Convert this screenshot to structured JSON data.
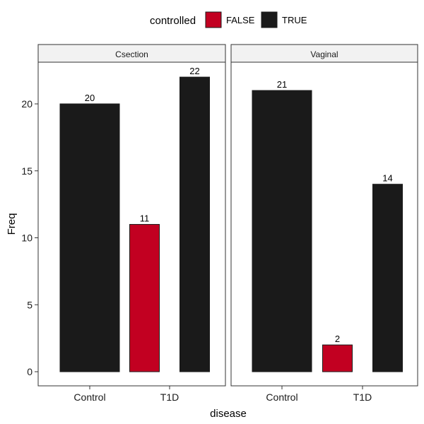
{
  "chart_data": {
    "type": "bar",
    "layout": "faceted-dodged",
    "xlabel": "disease",
    "ylabel": "Freq",
    "ylim": [
      0,
      23
    ],
    "yticks": [
      0,
      5,
      10,
      15,
      20
    ],
    "grid": false,
    "legend": {
      "title": "controlled",
      "placement": "top",
      "entries": [
        {
          "label": "FALSE",
          "color": "#c20021"
        },
        {
          "label": "TRUE",
          "color": "#1a1a1a"
        }
      ]
    },
    "categories": [
      "Control",
      "T1D"
    ],
    "facets": [
      {
        "name": "Csection",
        "bars": [
          {
            "category": "Control",
            "group": "TRUE",
            "value": 20
          },
          {
            "category": "T1D",
            "group": "FALSE",
            "value": 11
          },
          {
            "category": "T1D",
            "group": "TRUE",
            "value": 22
          }
        ]
      },
      {
        "name": "Vaginal",
        "bars": [
          {
            "category": "Control",
            "group": "TRUE",
            "value": 21
          },
          {
            "category": "T1D",
            "group": "FALSE",
            "value": 2
          },
          {
            "category": "T1D",
            "group": "TRUE",
            "value": 14
          }
        ]
      }
    ]
  }
}
